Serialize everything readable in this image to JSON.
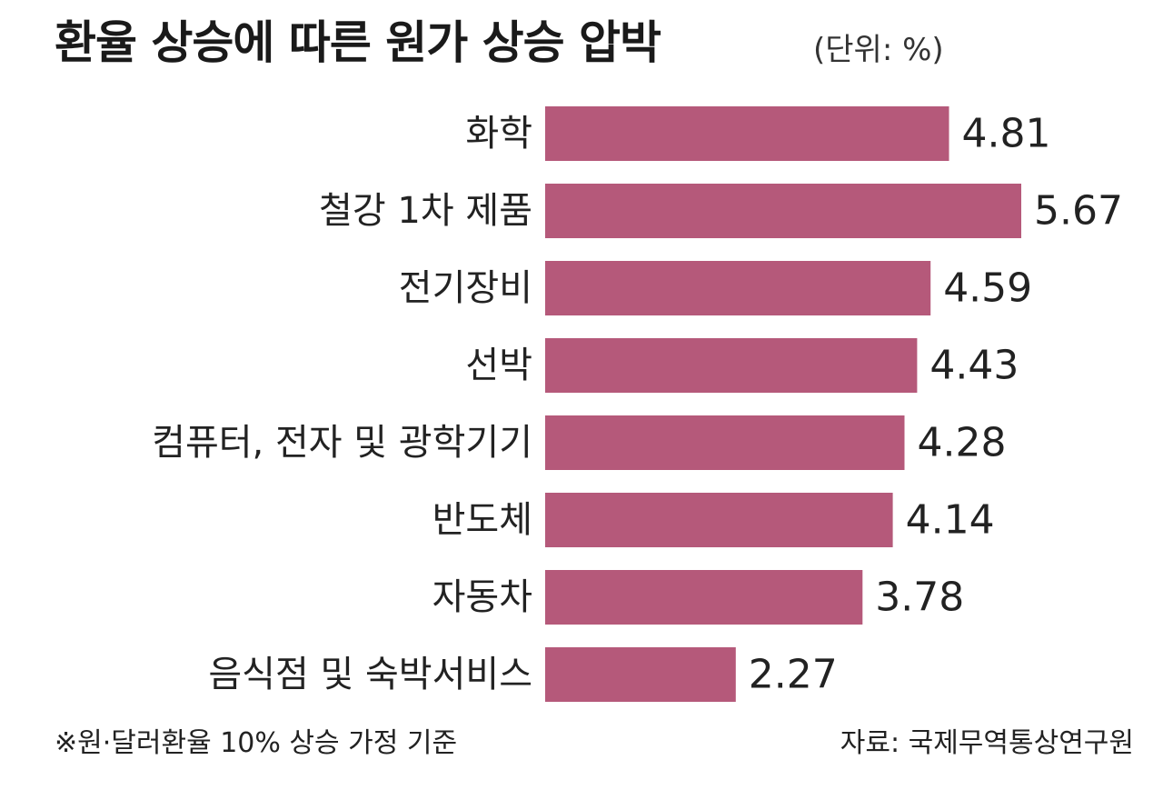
{
  "chart_data": {
    "type": "bar",
    "orientation": "horizontal",
    "title": "환율 상승에 따른 원가 상승 압박",
    "unit_label": "(단위: %)",
    "categories": [
      "화학",
      "철강 1차 제품",
      "전기장비",
      "선박",
      "컴퓨터, 전자 및 광학기기",
      "반도체",
      "자동차",
      "음식점 및 숙박서비스"
    ],
    "values": [
      "4.81",
      "5.67",
      "4.59",
      "4.43",
      "4.28",
      "4.14",
      "3.78",
      "2.27"
    ],
    "xlim": [
      0,
      5.67
    ],
    "grid": false,
    "legend": "none",
    "bar_color": "#b5597a",
    "footnote": "※원·달러환율 10% 상승 가정 기준",
    "source": "자료: 국제무역통상연구원"
  }
}
